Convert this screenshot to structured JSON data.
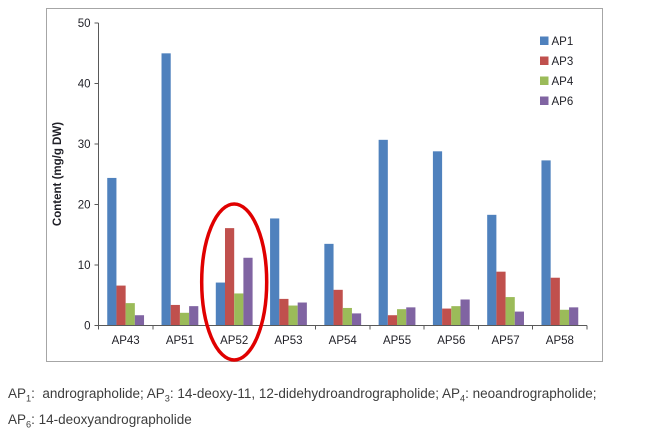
{
  "chart_data": {
    "type": "bar",
    "title": "",
    "xlabel": "",
    "ylabel": "Content (mg/g DW)",
    "ylim": [
      0,
      50
    ],
    "yticks": [
      0,
      10,
      20,
      30,
      40,
      50
    ],
    "grid": false,
    "legend_position": "top-right-inside",
    "categories": [
      "AP43",
      "AP51",
      "AP52",
      "AP53",
      "AP54",
      "AP55",
      "AP56",
      "AP57",
      "AP58"
    ],
    "series": [
      {
        "name": "AP1",
        "color": "#4F81BD",
        "values": [
          24.4,
          45.0,
          7.1,
          17.7,
          13.5,
          30.7,
          28.8,
          18.3,
          27.3
        ]
      },
      {
        "name": "AP3",
        "color": "#C0504D",
        "values": [
          6.6,
          3.4,
          16.1,
          4.4,
          5.9,
          1.7,
          2.8,
          8.9,
          7.9
        ]
      },
      {
        "name": "AP4",
        "color": "#9BBB59",
        "values": [
          3.7,
          2.1,
          5.3,
          3.3,
          2.9,
          2.7,
          3.2,
          4.7,
          2.6
        ]
      },
      {
        "name": "AP6",
        "color": "#8064A2",
        "values": [
          1.7,
          3.2,
          11.2,
          3.8,
          2.0,
          3.0,
          4.3,
          2.3,
          3.0
        ]
      }
    ],
    "annotation": {
      "type": "ellipse",
      "highlighted_category": "AP52",
      "color": "#E00000"
    },
    "axis_color": "#595959",
    "frame_color": "#A6A6A6"
  },
  "caption": {
    "lines": [
      {
        "segments": [
          {
            "t": "AP"
          },
          {
            "t": "1",
            "sub": true
          },
          {
            "t": ":  andrographolide; AP"
          },
          {
            "t": "3",
            "sub": true
          },
          {
            "t": ": 14-deoxy-11, 12-didehydroandrographolide; AP"
          },
          {
            "t": "4",
            "sub": true
          },
          {
            "t": ": neoandrographolide;"
          }
        ]
      },
      {
        "segments": [
          {
            "t": "AP"
          },
          {
            "t": "6",
            "sub": true
          },
          {
            "t": ": 14-deoxyandrographolide"
          }
        ]
      }
    ]
  }
}
